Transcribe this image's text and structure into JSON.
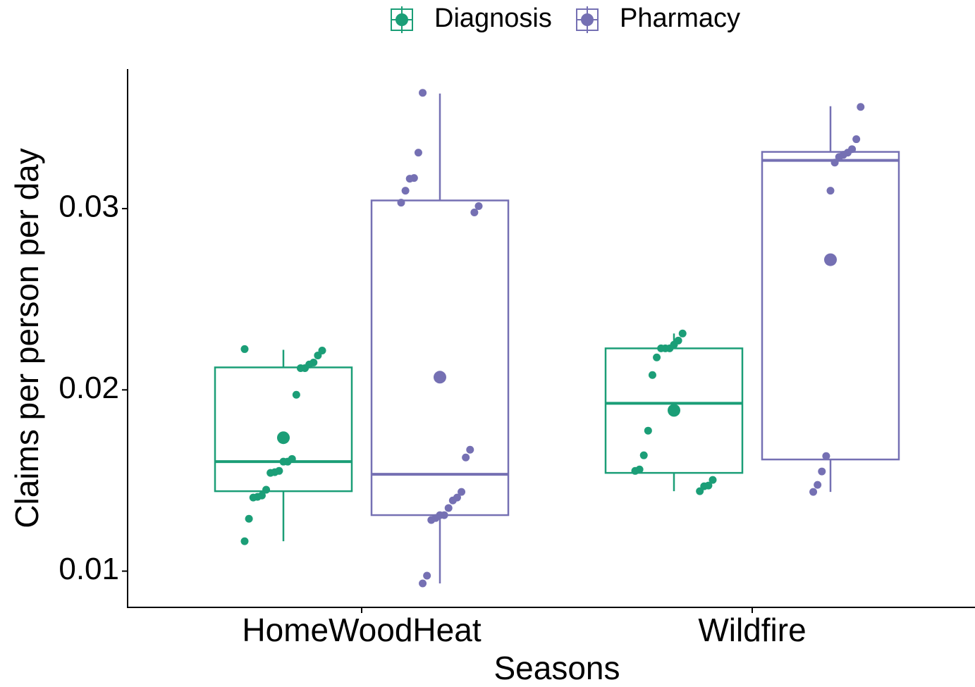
{
  "chart_data": {
    "type": "box",
    "x_label": "Seasons",
    "y_label": "Claims per person per day",
    "categories": [
      "HomeWoodHeat",
      "Wildfire"
    ],
    "ylim": [
      0.008,
      0.0377
    ],
    "yticks": [
      0.01,
      0.02,
      0.03
    ],
    "legend": "top",
    "series": [
      {
        "name": "Diagnosis",
        "color": "#1b9e77",
        "boxes": [
          {
            "low": 0.01165,
            "q1": 0.01441,
            "median": 0.01604,
            "q3": 0.02124,
            "high": 0.02221,
            "mean": 0.01736,
            "points": [
              0.02225,
              0.02217,
              0.0219,
              0.02151,
              0.0214,
              0.0212,
              0.0212,
              0.01973,
              0.01619,
              0.01604,
              0.01604,
              0.01553,
              0.01546,
              0.01542,
              0.01449,
              0.01417,
              0.0141,
              0.01406,
              0.01289,
              0.01165
            ]
          },
          {
            "low": 0.01441,
            "q1": 0.01542,
            "median": 0.01926,
            "q3": 0.02229,
            "high": 0.02311,
            "mean": 0.01887,
            "points": [
              0.02311,
              0.02272,
              0.02249,
              0.02229,
              0.02229,
              0.02229,
              0.02179,
              0.02082,
              0.01775,
              0.01639,
              0.01561,
              0.01553,
              0.01503,
              0.01472,
              0.01468,
              0.01441
            ]
          }
        ]
      },
      {
        "name": "Pharmacy",
        "color": "#7570b3",
        "boxes": [
          {
            "low": 0.00932,
            "q1": 0.01309,
            "median": 0.01534,
            "q3": 0.03045,
            "high": 0.03635,
            "mean": 0.0207,
            "points": [
              0.03639,
              0.03309,
              0.03169,
              0.03165,
              0.03099,
              0.03033,
              0.03014,
              0.02979,
              0.0167,
              0.01627,
              0.01437,
              0.01406,
              0.0139,
              0.01348,
              0.01309,
              0.01309,
              0.01293,
              0.01282,
              0.00975,
              0.00932
            ]
          },
          {
            "low": 0.01437,
            "q1": 0.01616,
            "median": 0.03266,
            "q3": 0.03313,
            "high": 0.03565,
            "mean": 0.02718,
            "points": [
              0.03561,
              0.03383,
              0.03328,
              0.03309,
              0.03297,
              0.03285,
              0.03254,
              0.03099,
              0.01635,
              0.0155,
              0.01476,
              0.01437
            ]
          }
        ]
      }
    ]
  }
}
